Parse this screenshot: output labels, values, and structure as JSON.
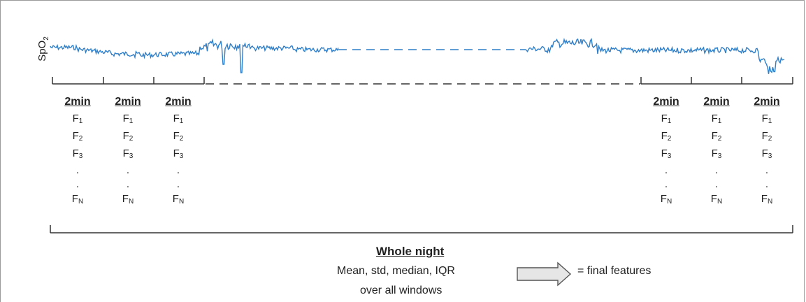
{
  "ylabel": {
    "text": "SpO",
    "sub": "2"
  },
  "window_label": "2min",
  "features": [
    {
      "text": "F",
      "sub": "1"
    },
    {
      "text": "F",
      "sub": "2"
    },
    {
      "text": "F",
      "sub": "3"
    }
  ],
  "dots": [
    ".",
    "."
  ],
  "last_feature": {
    "text": "F",
    "sub": "N"
  },
  "whole_night": {
    "title": "Whole night",
    "line1": "Mean, std, median, IQR",
    "line2": "over all windows",
    "result": "= final features"
  },
  "colors": {
    "signal": "#2f7fc9",
    "frame": "#9a9a9a",
    "lines": "#333333",
    "arrow_fill": "#e6e6e6",
    "arrow_stroke": "#555555"
  }
}
